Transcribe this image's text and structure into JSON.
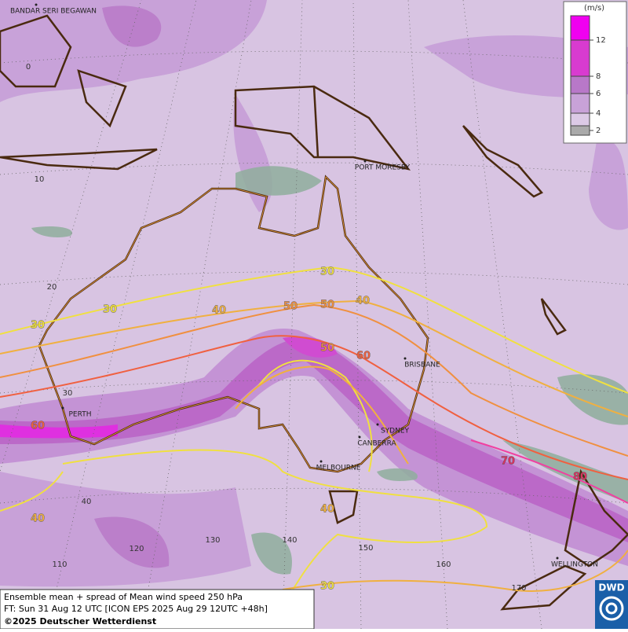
{
  "map": {
    "cities": [
      "BANDAR SERI BEGAWAN",
      "PORT MORESBY",
      "BRISBANE",
      "PERTH",
      "SYDNEY",
      "CANBERRA",
      "MELBOURNE",
      "WELLINGTON"
    ],
    "latitude_labels": [
      0,
      10,
      20,
      30,
      40
    ],
    "longitude_labels": [
      110,
      120,
      130,
      140,
      150,
      160,
      170
    ],
    "contour_labels": [
      30,
      30,
      30,
      40,
      40,
      50,
      50,
      50,
      60,
      60,
      70,
      80,
      40,
      40,
      30
    ],
    "legend": {
      "unit": "(m/s)",
      "ticks": [
        2,
        4,
        6,
        8,
        12
      ]
    },
    "footer": {
      "line1": "Ensemble mean + spread of Mean wind speed 250 hPa",
      "line2": "FT: Sun 31 Aug 12 UTC [ICON EPS 2025 Aug 29 12UTC +48h]",
      "copyright": "©2025 Deutscher Wetterdienst"
    },
    "logo": "DWD"
  }
}
